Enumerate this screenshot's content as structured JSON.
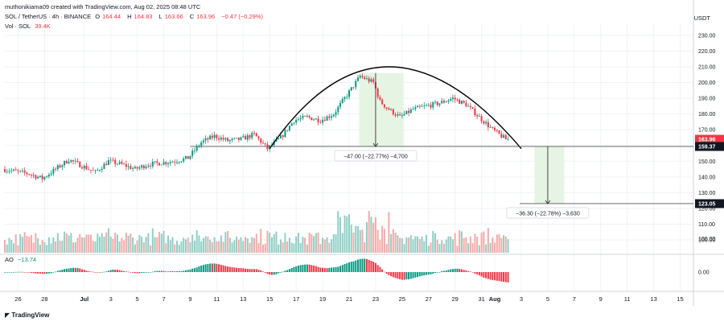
{
  "header": {
    "attribution": "muthonikiama09 created with TradingView.com, Aug 02, 2025 08:48 UTC",
    "symbol": "SOL / TetherUS · 4h · BINANCE",
    "open_label": "O",
    "open": "164.44",
    "high_label": "H",
    "high": "164.83",
    "low_label": "L",
    "low": "163.66",
    "close_label": "C",
    "close": "163.96",
    "change": "−0.47 (−0.29%)",
    "vol_label": "Vol · SOL",
    "vol_value": "39.4K",
    "ao_label": "AO",
    "ao_value": "−13.74",
    "currency": "USDT"
  },
  "footer": {
    "logo_text": "TradingView"
  },
  "colors": {
    "up": "#089981",
    "down": "#f23645",
    "vol_up": "#8fcfc5",
    "vol_down": "#f7a9a7",
    "box": "#e6f4e4",
    "grid": "#f0f3fa",
    "axis_text": "#131722",
    "line": "#000000"
  },
  "chart_data": {
    "type": "candlestick",
    "symbol": "SOL/USDT",
    "interval": "4h",
    "price_axis": {
      "ticks": [
        100,
        110,
        120,
        130,
        140,
        150,
        160,
        170,
        180,
        190,
        200,
        210,
        220,
        230
      ],
      "tick_labels": [
        "100.00",
        "110.00",
        "120.00",
        "130.00",
        "140.00",
        "150.00",
        "160.00",
        "170.00",
        "180.00",
        "190.00",
        "200.00",
        "210.00",
        "220.00",
        "230.00"
      ],
      "visible_range": [
        99,
        232
      ]
    },
    "time_axis": {
      "start": "2025-06-25",
      "end": "2025-08-16",
      "ticks": [
        {
          "date": "2025-06-26",
          "label": "26"
        },
        {
          "date": "2025-06-28",
          "label": "28"
        },
        {
          "date": "2025-07-01",
          "label": "Jul"
        },
        {
          "date": "2025-07-03",
          "label": "3"
        },
        {
          "date": "2025-07-05",
          "label": "5"
        },
        {
          "date": "2025-07-07",
          "label": "7"
        },
        {
          "date": "2025-07-09",
          "label": "9"
        },
        {
          "date": "2025-07-11",
          "label": "11"
        },
        {
          "date": "2025-07-13",
          "label": "13"
        },
        {
          "date": "2025-07-15",
          "label": "15"
        },
        {
          "date": "2025-07-17",
          "label": "17"
        },
        {
          "date": "2025-07-19",
          "label": "19"
        },
        {
          "date": "2025-07-21",
          "label": "21"
        },
        {
          "date": "2025-07-23",
          "label": "23"
        },
        {
          "date": "2025-07-25",
          "label": "25"
        },
        {
          "date": "2025-07-27",
          "label": "27"
        },
        {
          "date": "2025-07-29",
          "label": "29"
        },
        {
          "date": "2025-07-31",
          "label": "31"
        },
        {
          "date": "2025-08-01",
          "label": "Aug"
        },
        {
          "date": "2025-08-03",
          "label": "3"
        },
        {
          "date": "2025-08-05",
          "label": "5"
        },
        {
          "date": "2025-08-07",
          "label": "7"
        },
        {
          "date": "2025-08-09",
          "label": "9"
        },
        {
          "date": "2025-08-11",
          "label": "11"
        },
        {
          "date": "2025-08-13",
          "label": "13"
        },
        {
          "date": "2025-08-15",
          "label": "15"
        }
      ]
    },
    "price_path": [
      [
        "2025-06-25",
        145
      ],
      [
        "2025-06-27",
        142
      ],
      [
        "2025-06-28",
        139
      ],
      [
        "2025-06-30",
        151
      ],
      [
        "2025-07-01",
        147
      ],
      [
        "2025-07-02",
        143
      ],
      [
        "2025-07-03",
        150
      ],
      [
        "2025-07-04",
        148
      ],
      [
        "2025-07-05",
        145
      ],
      [
        "2025-07-06",
        148
      ],
      [
        "2025-07-08",
        150
      ],
      [
        "2025-07-09",
        152
      ],
      [
        "2025-07-10",
        162
      ],
      [
        "2025-07-11",
        166
      ],
      [
        "2025-07-12",
        163
      ],
      [
        "2025-07-13",
        164
      ],
      [
        "2025-07-14",
        167
      ],
      [
        "2025-07-15",
        158
      ],
      [
        "2025-07-16",
        165
      ],
      [
        "2025-07-17",
        176
      ],
      [
        "2025-07-18",
        178
      ],
      [
        "2025-07-19",
        176
      ],
      [
        "2025-07-20",
        180
      ],
      [
        "2025-07-21",
        192
      ],
      [
        "2025-07-22",
        204
      ],
      [
        "2025-07-23",
        200
      ],
      [
        "2025-07-23T12:00",
        188
      ],
      [
        "2025-07-24",
        184
      ],
      [
        "2025-07-25",
        178
      ],
      [
        "2025-07-26",
        183
      ],
      [
        "2025-07-27",
        185
      ],
      [
        "2025-07-28",
        187
      ],
      [
        "2025-07-29",
        190
      ],
      [
        "2025-07-30",
        186
      ],
      [
        "2025-07-31",
        178
      ],
      [
        "2025-08-01",
        170
      ],
      [
        "2025-08-02",
        164
      ]
    ],
    "last_price": {
      "value": 163.96,
      "label": "163.96"
    },
    "support_level": {
      "value": 159.37,
      "label": "159.37"
    },
    "target_level": {
      "value": 123.05,
      "label": "123.05"
    },
    "arc": {
      "start": [
        "2025-07-15",
        158
      ],
      "peak": [
        "2025-07-24",
        210
      ],
      "end": [
        "2025-08-03",
        158
      ]
    },
    "measure_1": {
      "from": [
        "2025-07-22",
        206
      ],
      "to": [
        "2025-07-22",
        159.37
      ],
      "label": "−47.00 (−22.77%) −4,700"
    },
    "measure_2": {
      "from": [
        "2025-08-05",
        159.37
      ],
      "to": [
        "2025-08-05",
        123.05
      ],
      "label": "−36.30 (−22.78%) −3,630"
    },
    "volume_axis": {
      "tick_label": "100.00"
    },
    "ao_axis": {
      "tick_label": "0.00"
    }
  }
}
